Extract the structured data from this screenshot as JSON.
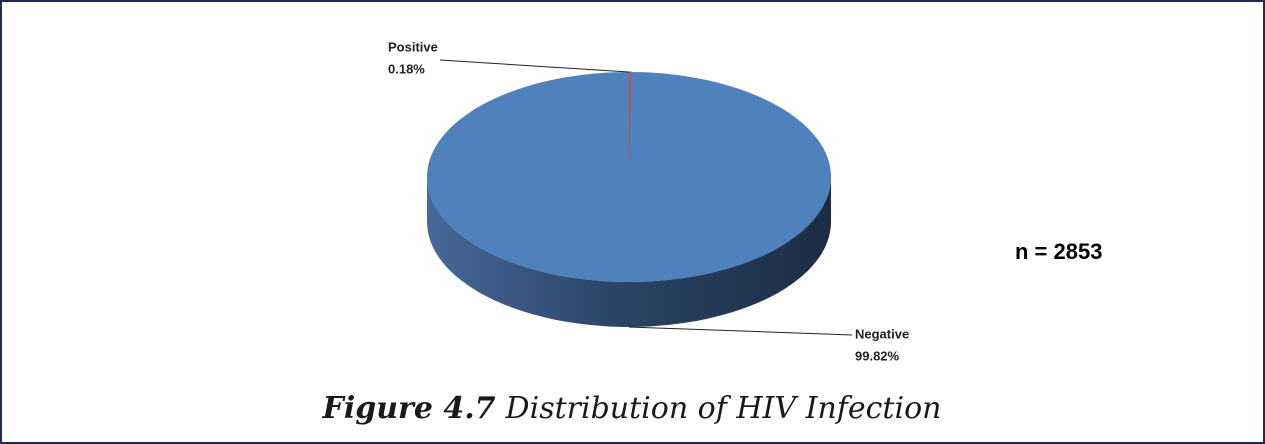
{
  "chart_data": {
    "type": "pie3d",
    "categories": [
      "Positive",
      "Negative"
    ],
    "values": [
      0.18,
      99.82
    ],
    "value_labels": [
      "0.18%",
      "99.82%"
    ],
    "colors": [
      "#c0504d",
      "#4f81bd"
    ],
    "annotation": "n = 2853",
    "figure_label": "Figure 4.7",
    "title": "Distribution of HIV Infection"
  }
}
